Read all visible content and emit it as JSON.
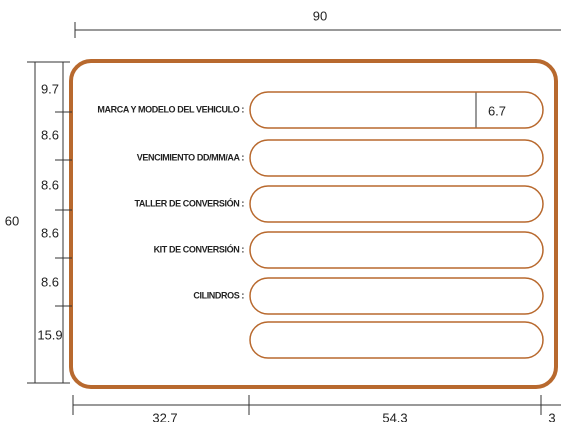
{
  "dimensions": {
    "width": 90,
    "height": 60,
    "rows": [
      9.7,
      8.6,
      8.6,
      8.6,
      8.6,
      15.9
    ],
    "bottom": [
      32.7,
      54.3,
      3
    ],
    "field_height": 6.7
  },
  "fields": [
    "MARCA Y MODELO DEL VEHICULO :",
    "VENCIMIENTO DD/MM/AA :",
    "TALLER DE CONVERSIÓN :",
    "KIT DE CONVERSIÓN :",
    "CILINDROS :"
  ]
}
